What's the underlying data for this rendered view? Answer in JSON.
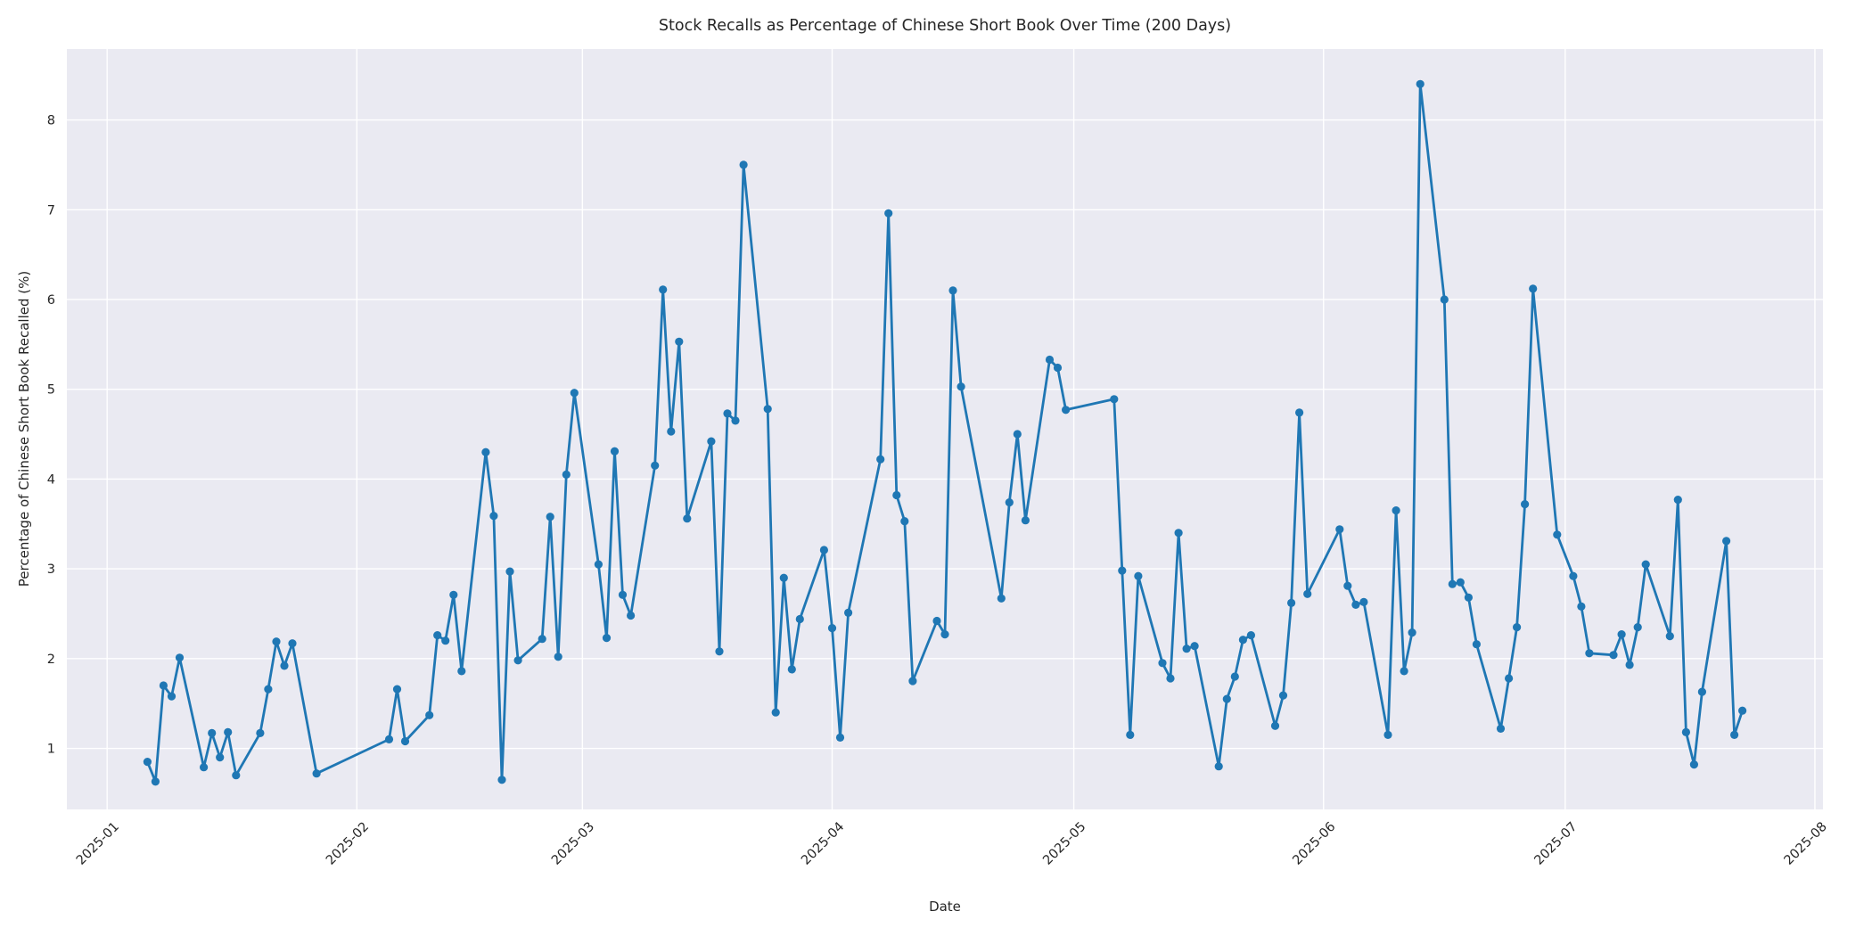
{
  "chart_data": {
    "type": "line",
    "title": "Stock Recalls as Percentage of Chinese Short Book Over Time (200 Days)",
    "xlabel": "Date",
    "ylabel": "Percentage of Chinese Short Book Recalled (%)",
    "legend": null,
    "grid": true,
    "ylim": [
      0.32,
      8.79
    ],
    "xlim": [
      "2024-12-27",
      "2025-08-02"
    ],
    "y_ticks": [
      1,
      2,
      3,
      4,
      5,
      6,
      7,
      8
    ],
    "x_ticks": [
      {
        "date": "2025-01-01",
        "label": "2025-01"
      },
      {
        "date": "2025-02-01",
        "label": "2025-02"
      },
      {
        "date": "2025-03-01",
        "label": "2025-03"
      },
      {
        "date": "2025-04-01",
        "label": "2025-04"
      },
      {
        "date": "2025-05-01",
        "label": "2025-05"
      },
      {
        "date": "2025-06-01",
        "label": "2025-06"
      },
      {
        "date": "2025-07-01",
        "label": "2025-07"
      },
      {
        "date": "2025-08-01",
        "label": "2025-08"
      }
    ],
    "style": {
      "line_color": "#1f77b4",
      "marker": "circle",
      "axes_bg": "#eaeaf2",
      "grid_color": "#ffffff",
      "fig_bg": "#ffffff",
      "text_color": "#262626"
    },
    "x": [
      "2025-01-06",
      "2025-01-07",
      "2025-01-08",
      "2025-01-09",
      "2025-01-10",
      "2025-01-13",
      "2025-01-14",
      "2025-01-15",
      "2025-01-16",
      "2025-01-17",
      "2025-01-20",
      "2025-01-21",
      "2025-01-22",
      "2025-01-23",
      "2025-01-24",
      "2025-01-27",
      "2025-02-05",
      "2025-02-06",
      "2025-02-07",
      "2025-02-10",
      "2025-02-11",
      "2025-02-12",
      "2025-02-13",
      "2025-02-14",
      "2025-02-17",
      "2025-02-18",
      "2025-02-19",
      "2025-02-20",
      "2025-02-21",
      "2025-02-24",
      "2025-02-25",
      "2025-02-26",
      "2025-02-27",
      "2025-02-28",
      "2025-03-03",
      "2025-03-04",
      "2025-03-05",
      "2025-03-06",
      "2025-03-07",
      "2025-03-10",
      "2025-03-11",
      "2025-03-12",
      "2025-03-13",
      "2025-03-14",
      "2025-03-17",
      "2025-03-18",
      "2025-03-19",
      "2025-03-20",
      "2025-03-21",
      "2025-03-24",
      "2025-03-25",
      "2025-03-26",
      "2025-03-27",
      "2025-03-28",
      "2025-03-31",
      "2025-04-01",
      "2025-04-02",
      "2025-04-03",
      "2025-04-07",
      "2025-04-08",
      "2025-04-09",
      "2025-04-10",
      "2025-04-11",
      "2025-04-14",
      "2025-04-15",
      "2025-04-16",
      "2025-04-17",
      "2025-04-22",
      "2025-04-23",
      "2025-04-24",
      "2025-04-25",
      "2025-04-28",
      "2025-04-29",
      "2025-04-30",
      "2025-05-06",
      "2025-05-07",
      "2025-05-08",
      "2025-05-09",
      "2025-05-12",
      "2025-05-13",
      "2025-05-14",
      "2025-05-15",
      "2025-05-16",
      "2025-05-19",
      "2025-05-20",
      "2025-05-21",
      "2025-05-22",
      "2025-05-23",
      "2025-05-26",
      "2025-05-27",
      "2025-05-28",
      "2025-05-29",
      "2025-05-30",
      "2025-06-03",
      "2025-06-04",
      "2025-06-05",
      "2025-06-06",
      "2025-06-09",
      "2025-06-10",
      "2025-06-11",
      "2025-06-12",
      "2025-06-13",
      "2025-06-16",
      "2025-06-17",
      "2025-06-18",
      "2025-06-19",
      "2025-06-20",
      "2025-06-23",
      "2025-06-24",
      "2025-06-25",
      "2025-06-26",
      "2025-06-27",
      "2025-06-30",
      "2025-07-02",
      "2025-07-03",
      "2025-07-04",
      "2025-07-07",
      "2025-07-08",
      "2025-07-09",
      "2025-07-10",
      "2025-07-11",
      "2025-07-14",
      "2025-07-15",
      "2025-07-16",
      "2025-07-17",
      "2025-07-18",
      "2025-07-21",
      "2025-07-22",
      "2025-07-23"
    ],
    "values": [
      0.85,
      0.63,
      1.7,
      1.58,
      2.01,
      0.79,
      1.17,
      0.9,
      1.18,
      0.7,
      1.17,
      1.66,
      2.19,
      1.92,
      2.17,
      0.72,
      1.1,
      1.66,
      1.08,
      1.37,
      2.26,
      2.2,
      2.71,
      1.86,
      4.3,
      3.59,
      0.65,
      2.97,
      1.98,
      2.22,
      3.58,
      2.02,
      4.05,
      4.96,
      3.05,
      2.23,
      4.31,
      2.71,
      2.48,
      4.15,
      6.11,
      4.53,
      5.53,
      3.56,
      4.42,
      2.08,
      4.73,
      4.65,
      7.5,
      4.78,
      1.4,
      2.9,
      1.88,
      2.44,
      3.21,
      2.34,
      1.12,
      2.51,
      4.22,
      6.96,
      3.82,
      3.53,
      1.75,
      2.42,
      2.27,
      6.1,
      5.03,
      2.67,
      3.74,
      4.5,
      3.54,
      5.33,
      5.24,
      4.77,
      4.89,
      2.98,
      1.15,
      2.92,
      1.95,
      1.78,
      3.4,
      2.11,
      2.14,
      0.8,
      1.55,
      1.8,
      2.21,
      2.26,
      1.25,
      1.59,
      2.62,
      4.74,
      2.72,
      3.44,
      2.81,
      2.6,
      2.63,
      1.15,
      3.65,
      1.86,
      2.29,
      8.4,
      6.0,
      2.83,
      2.85,
      2.68,
      2.16,
      1.22,
      1.78,
      2.35,
      3.72,
      6.12,
      3.38,
      2.92,
      2.58,
      2.06,
      2.04,
      2.27,
      1.93,
      2.35,
      3.05,
      2.25,
      3.77,
      1.18,
      0.82,
      1.63,
      3.31,
      1.15,
      1.42
    ]
  }
}
